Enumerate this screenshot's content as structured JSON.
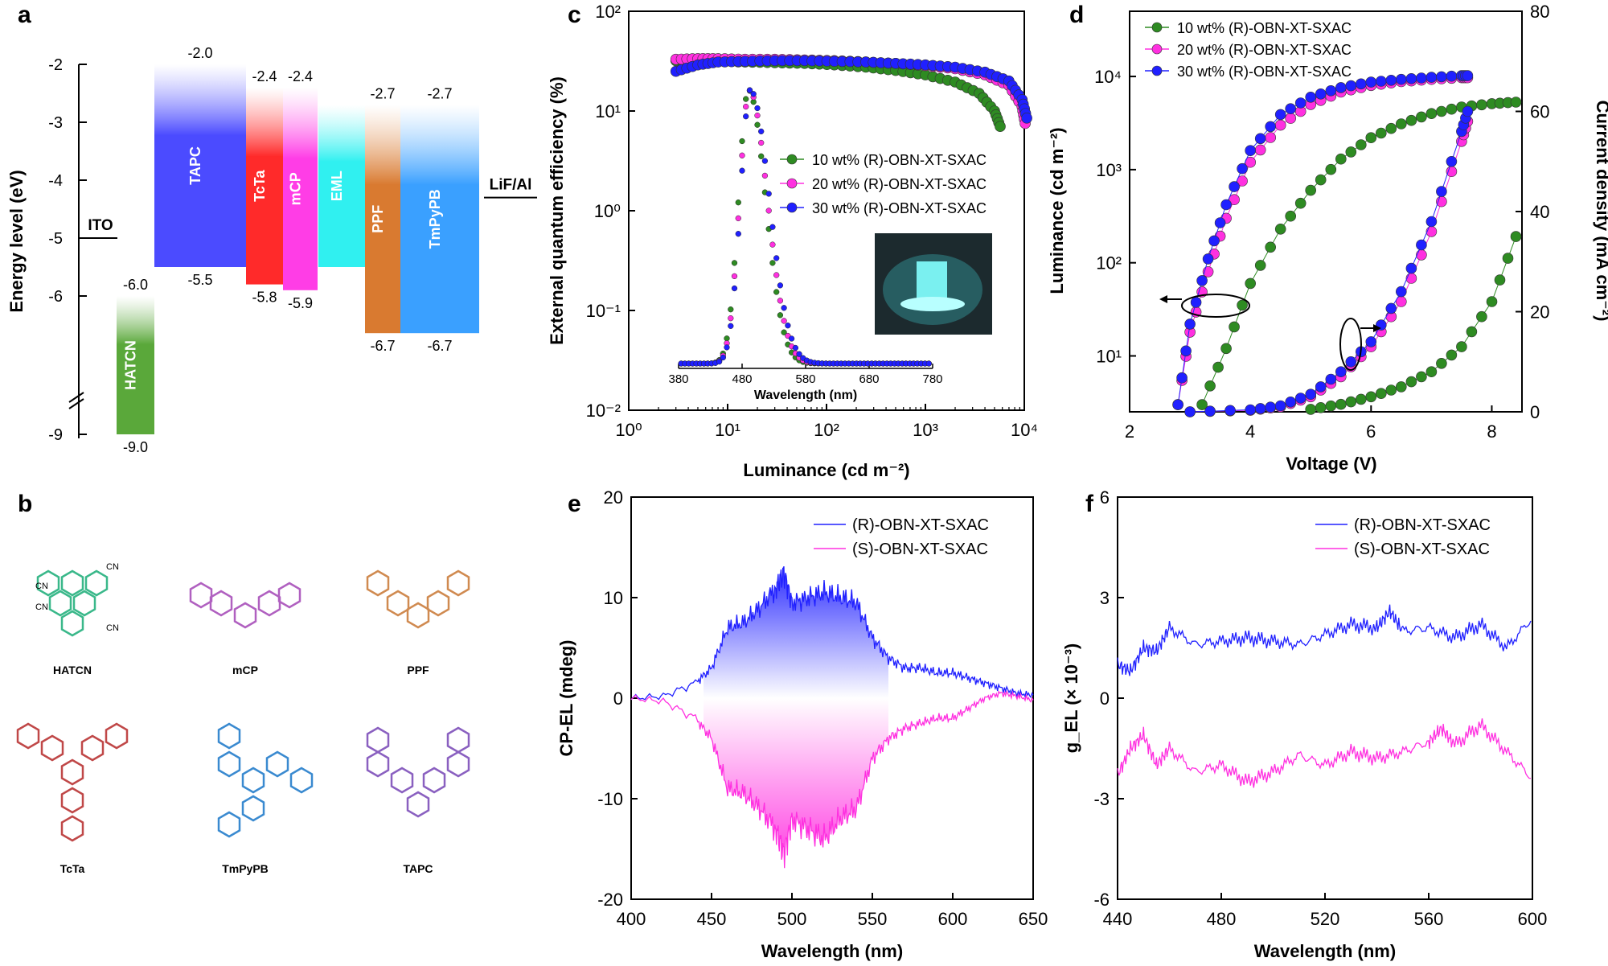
{
  "panel_letters": [
    "a",
    "b",
    "c",
    "d",
    "e",
    "f"
  ],
  "chart_data": [
    {
      "panel": "a",
      "type": "energy-level-diagram",
      "ylabel": "Energy level (eV)",
      "yticks": [
        "-2",
        "-3",
        "-4",
        "-5",
        "-6",
        "-9"
      ],
      "layers": [
        {
          "name": "ITO",
          "top": -5.0,
          "bottom": null,
          "color": "#000000",
          "top_label": "ITO"
        },
        {
          "name": "HATCN",
          "top": -6.0,
          "bottom": -9.0,
          "color": "#5aa83a",
          "top_label": "-6.0",
          "bottom_label": "-9.0"
        },
        {
          "name": "TAPC",
          "top": -2.0,
          "bottom": -5.5,
          "color": "#4b4bff",
          "top_label": "-2.0",
          "bottom_label": "-5.5"
        },
        {
          "name": "TcTa",
          "top": -2.4,
          "bottom": -5.8,
          "color": "#ff2a2a",
          "top_label": "-2.4",
          "bottom_label": "-5.8"
        },
        {
          "name": "mCP",
          "top": -2.4,
          "bottom": -5.9,
          "color": "#ff3de6",
          "top_label": "-2.4",
          "bottom_label": "-5.9"
        },
        {
          "name": "EML",
          "top": -2.7,
          "bottom": -5.5,
          "color": "#30f0f0",
          "top_label": "",
          "bottom_label": ""
        },
        {
          "name": "PPF",
          "top": -2.7,
          "bottom": -6.7,
          "color": "#d97a30",
          "top_label": "-2.7",
          "bottom_label": "-6.7"
        },
        {
          "name": "TmPyPB",
          "top": -2.7,
          "bottom": -6.7,
          "color": "#3aa0ff",
          "top_label": "-2.7",
          "bottom_label": "-6.7"
        },
        {
          "name": "LiF/Al",
          "top": -4.3,
          "bottom": null,
          "color": "#000000",
          "top_label": "LiF/Al"
        }
      ]
    },
    {
      "panel": "b",
      "type": "molecular-structures",
      "molecules": [
        {
          "name": "HATCN",
          "color": "#3ab88a"
        },
        {
          "name": "mCP",
          "color": "#b060c0"
        },
        {
          "name": "PPF",
          "color": "#d08a50"
        },
        {
          "name": "TcTa",
          "color": "#c04848"
        },
        {
          "name": "TmPyPB",
          "color": "#3a8ad0"
        },
        {
          "name": "TAPC",
          "color": "#8a60c0"
        }
      ],
      "substituent": "CN"
    },
    {
      "panel": "c",
      "type": "scatter",
      "xlabel": "Luminance (cd m⁻²)",
      "ylabel": "External quantum efficiency (%)",
      "xscale": "log",
      "yscale": "log",
      "xlim": [
        1,
        10000
      ],
      "ylim": [
        0.01,
        100
      ],
      "xticks": [
        "10⁰",
        "10¹",
        "10²",
        "10³",
        "10⁴"
      ],
      "yticks": [
        "10⁻²",
        "10⁻¹",
        "10⁰",
        "10¹",
        "10²"
      ],
      "legend": [
        "10 wt% (R)-OBN-XT-SXAC",
        "20 wt% (R)-OBN-XT-SXAC",
        "30 wt% (R)-OBN-XT-SXAC"
      ],
      "series": [
        {
          "name": "10 wt% (R)-OBN-XT-SXAC",
          "color": "#2e8b22",
          "x": [
            3,
            5,
            8,
            15,
            30,
            60,
            120,
            250,
            500,
            1000,
            2000,
            3500,
            5000,
            5700
          ],
          "y": [
            32,
            32,
            31.5,
            31,
            30.5,
            30,
            29,
            27.5,
            25.5,
            23,
            19.5,
            15,
            10,
            7
          ]
        },
        {
          "name": "20 wt% (R)-OBN-XT-SXAC",
          "color": "#ff30e0",
          "x": [
            3,
            5,
            8,
            15,
            30,
            60,
            120,
            250,
            500,
            1000,
            2000,
            4000,
            7000,
            9500,
            10200
          ],
          "y": [
            33,
            33.5,
            33.5,
            33,
            33,
            32.5,
            32,
            31,
            30,
            28.5,
            26.5,
            23,
            18,
            11,
            7.5
          ]
        },
        {
          "name": "30 wt% (R)-OBN-XT-SXAC",
          "color": "#2020ff",
          "x": [
            3,
            5,
            8,
            15,
            30,
            60,
            120,
            250,
            500,
            1000,
            2000,
            4000,
            7000,
            9500,
            10600
          ],
          "y": [
            25,
            29,
            31,
            31.5,
            32,
            32,
            31.5,
            31,
            30,
            29,
            27.5,
            24.5,
            20,
            13,
            8.5
          ]
        }
      ],
      "inset": {
        "type": "line",
        "xlabel": "Wavelength (nm)",
        "xticks": [
          380,
          480,
          580,
          680,
          780
        ],
        "xlim": [
          380,
          780
        ],
        "peak_nm": 490,
        "image_description_label": ""
      }
    },
    {
      "panel": "d",
      "type": "scatter",
      "xlabel": "Voltage (V)",
      "ylabel_left": "Luminance (cd m⁻²)",
      "ylabel_right": "Current density (mA cm⁻²)",
      "xlim": [
        2,
        8.5
      ],
      "xticks": [
        "2",
        "4",
        "6",
        "8"
      ],
      "yticks_left": [
        "10¹",
        "10²",
        "10³",
        "10⁴"
      ],
      "yticks_right": [
        "0",
        "20",
        "40",
        "60",
        "80"
      ],
      "legend": [
        "10 wt% (R)-OBN-XT-SXAC",
        "20 wt% (R)-OBN-XT-SXAC",
        "30 wt% (R)-OBN-XT-SXAC"
      ],
      "series_luminance": [
        {
          "name": "10 wt% (R)-OBN-XT-SXAC",
          "color": "#2e8b22",
          "x": [
            3.2,
            3.6,
            4.0,
            4.5,
            5.0,
            5.5,
            6.0,
            6.5,
            7.0,
            7.5,
            8.0,
            8.4
          ],
          "y": [
            3,
            12,
            60,
            230,
            600,
            1300,
            2200,
            3100,
            4000,
            4700,
            5100,
            5300
          ]
        },
        {
          "name": "20 wt% (R)-OBN-XT-SXAC",
          "color": "#ff30e0",
          "x": [
            2.8,
            3.0,
            3.3,
            3.6,
            4.0,
            4.5,
            5.0,
            5.5,
            6.0,
            6.5,
            7.0,
            7.5,
            7.6
          ],
          "y": [
            3,
            18,
            80,
            300,
            1200,
            3000,
            5000,
            6800,
            8000,
            8800,
            9300,
            9700,
            9700
          ]
        },
        {
          "name": "30 wt% (R)-OBN-XT-SXAC",
          "color": "#2020ff",
          "x": [
            2.8,
            3.0,
            3.3,
            3.6,
            4.0,
            4.5,
            5.0,
            5.5,
            6.0,
            6.5,
            7.0,
            7.5,
            7.6
          ],
          "y": [
            3,
            22,
            110,
            420,
            1600,
            3900,
            6000,
            7600,
            8700,
            9300,
            9800,
            10200,
            10200
          ]
        }
      ],
      "series_current": [
        {
          "name": "10 wt% (R)-OBN-XT-SXAC",
          "color": "#2e8b22",
          "x": [
            5.0,
            5.5,
            6.0,
            6.5,
            7.0,
            7.5,
            8.0,
            8.4
          ],
          "y": [
            0.5,
            1.5,
            3,
            5,
            8,
            13,
            22,
            35
          ]
        },
        {
          "name": "20 wt% (R)-OBN-XT-SXAC",
          "color": "#ff30e0",
          "x": [
            3.0,
            4.0,
            4.5,
            5.0,
            5.5,
            6.0,
            6.5,
            7.0,
            7.5,
            7.6
          ],
          "y": [
            0,
            0.3,
            1,
            3,
            7,
            13,
            22,
            36,
            54,
            58
          ]
        },
        {
          "name": "30 wt% (R)-OBN-XT-SXAC",
          "color": "#2020ff",
          "x": [
            3.0,
            4.0,
            4.5,
            5.0,
            5.5,
            6.0,
            6.5,
            7.0,
            7.5,
            7.6
          ],
          "y": [
            0,
            0.4,
            1.2,
            3.5,
            8,
            14,
            24,
            38,
            56,
            60
          ]
        }
      ]
    },
    {
      "panel": "e",
      "type": "line",
      "xlabel": "Wavelength (nm)",
      "ylabel": "CP-EL (mdeg)",
      "xlim": [
        400,
        650
      ],
      "ylim": [
        -20,
        20
      ],
      "xticks": [
        400,
        450,
        500,
        550,
        600,
        650
      ],
      "yticks": [
        -20,
        -10,
        0,
        10,
        20
      ],
      "legend": [
        "(R)-OBN-XT-SXAC",
        "(S)-OBN-XT-SXAC"
      ],
      "series": [
        {
          "name": "(R)-OBN-XT-SXAC",
          "color": "#2020ff",
          "x": [
            400,
            420,
            440,
            450,
            460,
            470,
            480,
            490,
            495,
            500,
            510,
            520,
            530,
            540,
            550,
            560,
            570,
            580,
            590,
            600,
            610,
            620,
            630,
            640,
            650
          ],
          "y": [
            0,
            0.2,
            1.5,
            3,
            7,
            7.5,
            9,
            11,
            12.5,
            9.5,
            10,
            10.5,
            10,
            9.5,
            6,
            4,
            3,
            3,
            2.5,
            2.5,
            2,
            1.5,
            1,
            0.5,
            0.3
          ]
        },
        {
          "name": "(S)-OBN-XT-SXAC",
          "color": "#ff30e0",
          "x": [
            400,
            420,
            440,
            450,
            460,
            470,
            480,
            490,
            495,
            500,
            510,
            520,
            530,
            540,
            550,
            560,
            570,
            580,
            590,
            600,
            610,
            620,
            630,
            640,
            650
          ],
          "y": [
            0,
            -0.3,
            -2,
            -4,
            -9,
            -9.5,
            -11,
            -13,
            -15.5,
            -12,
            -13,
            -14,
            -12,
            -11,
            -6,
            -4,
            -3,
            -2.5,
            -2,
            -2,
            -1,
            0,
            0.5,
            0.2,
            -0.2
          ]
        }
      ]
    },
    {
      "panel": "f",
      "type": "line",
      "xlabel": "Wavelength (nm)",
      "ylabel": "g_EL (× 10⁻³)",
      "xlim": [
        440,
        600
      ],
      "ylim": [
        -6,
        6
      ],
      "xticks": [
        440,
        480,
        520,
        560,
        600
      ],
      "yticks": [
        -6,
        -3,
        0,
        3,
        6
      ],
      "legend": [
        "(R)-OBN-XT-SXAC",
        "(S)-OBN-XT-SXAC"
      ],
      "series": [
        {
          "name": "(R)-OBN-XT-SXAC",
          "color": "#2020ff",
          "x": [
            440,
            445,
            450,
            455,
            460,
            470,
            480,
            490,
            500,
            510,
            520,
            530,
            540,
            545,
            550,
            560,
            570,
            580,
            590,
            600
          ],
          "y": [
            1.0,
            0.8,
            1.5,
            1.4,
            2.1,
            1.6,
            1.7,
            1.8,
            1.7,
            1.6,
            1.9,
            2.2,
            2.1,
            2.6,
            2.0,
            2.1,
            1.8,
            2.2,
            1.5,
            2.4
          ]
        },
        {
          "name": "(S)-OBN-XT-SXAC",
          "color": "#ff30e0",
          "x": [
            440,
            445,
            450,
            455,
            460,
            470,
            480,
            490,
            500,
            510,
            520,
            530,
            540,
            550,
            560,
            565,
            570,
            580,
            590,
            600
          ],
          "y": [
            -2.3,
            -1.5,
            -1.1,
            -2.0,
            -1.5,
            -2.2,
            -2.0,
            -2.5,
            -2.2,
            -1.7,
            -2.0,
            -1.6,
            -1.8,
            -1.6,
            -1.3,
            -0.9,
            -1.4,
            -0.8,
            -1.6,
            -2.4
          ]
        }
      ]
    }
  ]
}
